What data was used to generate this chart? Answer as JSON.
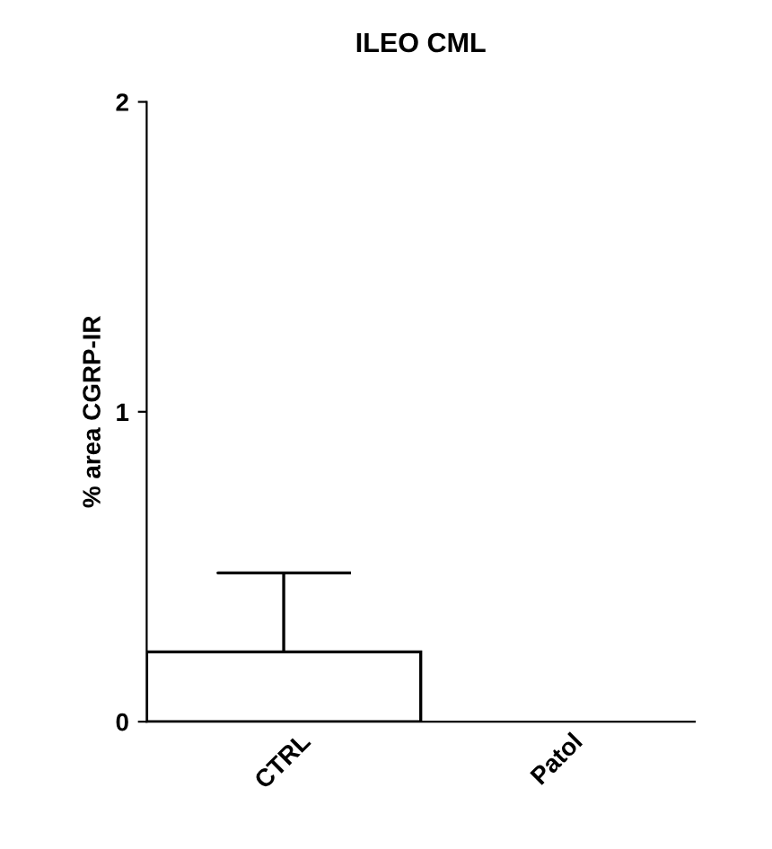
{
  "chart_data": {
    "type": "bar",
    "title": "ILEO CML",
    "ylabel": "% area CGRP-IR",
    "categories": [
      "CTRL",
      "Patol"
    ],
    "values": [
      0.225,
      null
    ],
    "errors": [
      [
        0.225,
        0.48
      ],
      null
    ],
    "color": "#ffffff",
    "ylim": [
      0,
      2
    ],
    "yticks": [
      0,
      1,
      2
    ],
    "grid": false
  }
}
